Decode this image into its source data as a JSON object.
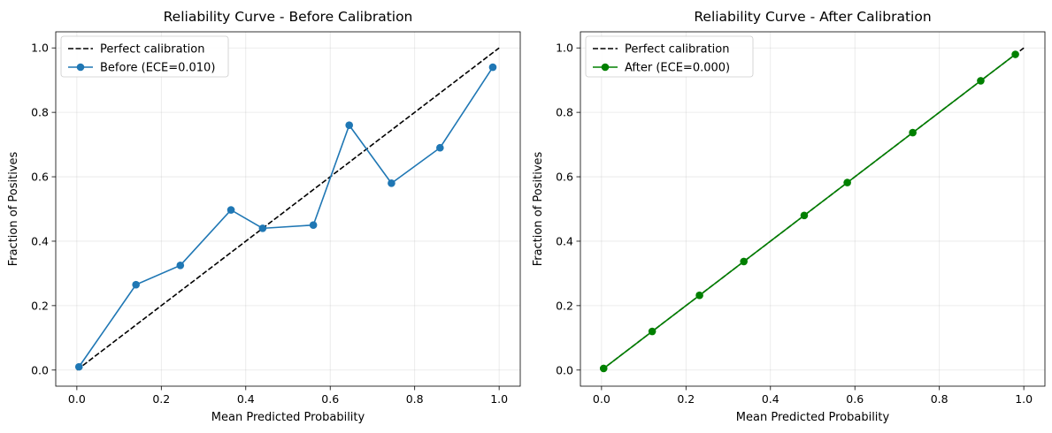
{
  "chart_data": [
    {
      "type": "line",
      "title": "Reliability Curve - Before Calibration",
      "xlabel": "Mean Predicted Probability",
      "ylabel": "Fraction of Positives",
      "xlim": [
        -0.05,
        1.05
      ],
      "ylim": [
        -0.05,
        1.05
      ],
      "xticks": [
        "0.0",
        "0.2",
        "0.4",
        "0.6",
        "0.8",
        "1.0"
      ],
      "yticks": [
        "0.0",
        "0.2",
        "0.4",
        "0.6",
        "0.8",
        "1.0"
      ],
      "grid": true,
      "legend_position": "top-left",
      "series": [
        {
          "name": "Perfect calibration",
          "style": "dashed",
          "color": "#000000",
          "markers": false,
          "x": [
            0,
            1
          ],
          "y": [
            0,
            1
          ]
        },
        {
          "name": "Before (ECE=0.010)",
          "style": "solid",
          "color": "#1f77b4",
          "markers": true,
          "x": [
            0.005,
            0.14,
            0.245,
            0.365,
            0.44,
            0.56,
            0.645,
            0.745,
            0.86,
            0.985
          ],
          "y": [
            0.01,
            0.265,
            0.325,
            0.497,
            0.44,
            0.45,
            0.76,
            0.58,
            0.69,
            0.94
          ]
        }
      ]
    },
    {
      "type": "line",
      "title": "Reliability Curve - After Calibration",
      "xlabel": "Mean Predicted Probability",
      "ylabel": "Fraction of Positives",
      "xlim": [
        -0.05,
        1.05
      ],
      "ylim": [
        -0.05,
        1.05
      ],
      "xticks": [
        "0.0",
        "0.2",
        "0.4",
        "0.6",
        "0.8",
        "1.0"
      ],
      "yticks": [
        "0.0",
        "0.2",
        "0.4",
        "0.6",
        "0.8",
        "1.0"
      ],
      "grid": true,
      "legend_position": "top-left",
      "series": [
        {
          "name": "Perfect calibration",
          "style": "dashed",
          "color": "#000000",
          "markers": false,
          "x": [
            0,
            1
          ],
          "y": [
            0,
            1
          ]
        },
        {
          "name": "After (ECE=0.000)",
          "style": "solid",
          "color": "#008000",
          "markers": true,
          "x": [
            0.005,
            0.12,
            0.232,
            0.337,
            0.48,
            0.582,
            0.737,
            0.898,
            0.98
          ],
          "y": [
            0.005,
            0.12,
            0.232,
            0.337,
            0.48,
            0.582,
            0.737,
            0.898,
            0.98
          ]
        }
      ]
    }
  ]
}
